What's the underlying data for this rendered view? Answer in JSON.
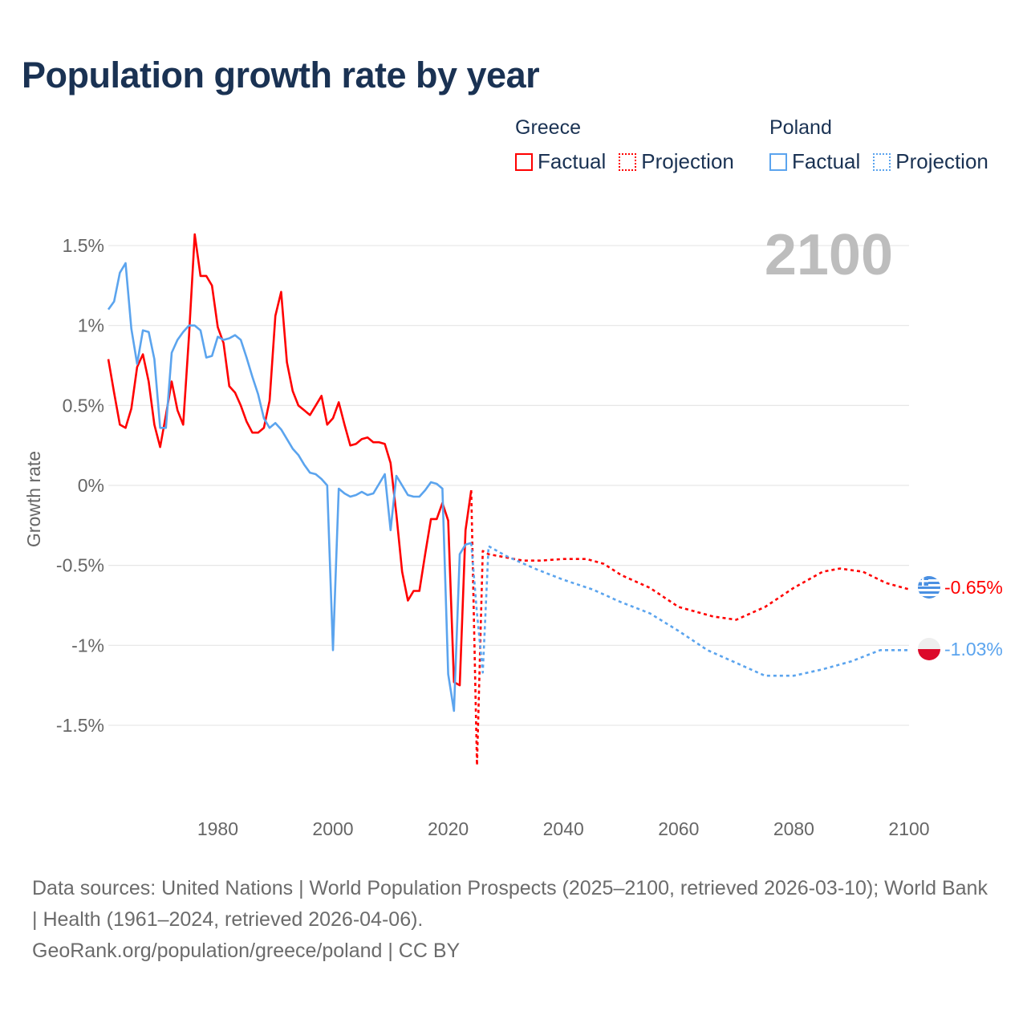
{
  "title": "Population growth rate by year",
  "legend": {
    "groups": [
      {
        "name": "Greece",
        "factual": "Factual",
        "projection": "Projection",
        "color": "#ff0000"
      },
      {
        "name": "Poland",
        "factual": "Factual",
        "projection": "Projection",
        "color": "#5ba4ee"
      }
    ]
  },
  "year_label": "2100",
  "end_labels": {
    "greece": "-0.65%",
    "poland": "-1.03%"
  },
  "footer": {
    "sources": "Data sources: United Nations | World Population Prospects (2025–2100, retrieved 2026-03-10); World Bank | Health (1961–2024, retrieved 2026-04-06).",
    "credit": "GeoRank.org/population/greece/poland | CC BY"
  },
  "chart_data": {
    "type": "line",
    "title": "Population growth rate by year",
    "xlabel": "",
    "ylabel": "Growth rate",
    "xlim": [
      1961,
      2100
    ],
    "ylim": [
      -1.75,
      1.6
    ],
    "grid": true,
    "legend_position": "top-right",
    "x_ticks": [
      {
        "v": 1980,
        "label": "1980"
      },
      {
        "v": 2000,
        "label": "2000"
      },
      {
        "v": 2020,
        "label": "2020"
      },
      {
        "v": 2040,
        "label": "2040"
      },
      {
        "v": 2060,
        "label": "2060"
      },
      {
        "v": 2080,
        "label": "2080"
      },
      {
        "v": 2100,
        "label": "2100"
      }
    ],
    "y_ticks": [
      {
        "v": 1.5,
        "label": "1.5%"
      },
      {
        "v": 1,
        "label": "1%"
      },
      {
        "v": 0.5,
        "label": "0.5%"
      },
      {
        "v": 0,
        "label": "0%"
      },
      {
        "v": -0.5,
        "label": "-0.5%"
      },
      {
        "v": -1,
        "label": "-1%"
      },
      {
        "v": -1.5,
        "label": "-1.5%"
      }
    ],
    "series": [
      {
        "name": "Greece Factual",
        "color": "#ff0000",
        "dashed": false,
        "start": 1961,
        "values": [
          0.79,
          0.58,
          0.38,
          0.36,
          0.48,
          0.74,
          0.82,
          0.65,
          0.38,
          0.24,
          0.44,
          0.65,
          0.47,
          0.38,
          0.93,
          1.57,
          1.31,
          1.31,
          1.25,
          0.99,
          0.89,
          0.62,
          0.58,
          0.5,
          0.4,
          0.33,
          0.33,
          0.36,
          0.53,
          1.06,
          1.21,
          0.77,
          0.59,
          0.5,
          0.47,
          0.44,
          0.5,
          0.56,
          0.38,
          0.42,
          0.52,
          0.38,
          0.25,
          0.26,
          0.29,
          0.3,
          0.27,
          0.27,
          0.26,
          0.14,
          -0.18,
          -0.54,
          -0.72,
          -0.66,
          -0.66,
          -0.43,
          -0.21,
          -0.21,
          -0.11,
          -0.22,
          -1.23,
          -1.25,
          -0.28,
          -0.03
        ]
      },
      {
        "name": "Poland Factual",
        "color": "#5ba4ee",
        "dashed": false,
        "start": 1961,
        "values": [
          1.1,
          1.15,
          1.33,
          1.39,
          0.98,
          0.76,
          0.97,
          0.96,
          0.79,
          0.36,
          0.36,
          0.83,
          0.91,
          0.96,
          1.0,
          1.0,
          0.97,
          0.8,
          0.81,
          0.93,
          0.91,
          0.92,
          0.94,
          0.91,
          0.8,
          0.68,
          0.57,
          0.42,
          0.36,
          0.39,
          0.35,
          0.29,
          0.23,
          0.19,
          0.13,
          0.08,
          0.07,
          0.04,
          0.0,
          -1.03,
          -0.02,
          -0.05,
          -0.07,
          -0.06,
          -0.04,
          -0.06,
          -0.05,
          0.01,
          0.07,
          -0.28,
          0.06,
          0.0,
          -0.06,
          -0.07,
          -0.07,
          -0.03,
          0.02,
          0.01,
          -0.02,
          -1.18,
          -1.41,
          -0.43,
          -0.37,
          -0.36
        ]
      },
      {
        "name": "Greece Projection",
        "color": "#ff0000",
        "dashed": true,
        "points": [
          [
            2024,
            -0.03
          ],
          [
            2025,
            -1.75
          ],
          [
            2026,
            -0.41
          ],
          [
            2027,
            -0.43
          ],
          [
            2030,
            -0.45
          ],
          [
            2033,
            -0.47
          ],
          [
            2036,
            -0.47
          ],
          [
            2040,
            -0.46
          ],
          [
            2044,
            -0.46
          ],
          [
            2047,
            -0.49
          ],
          [
            2050,
            -0.56
          ],
          [
            2055,
            -0.64
          ],
          [
            2060,
            -0.76
          ],
          [
            2063,
            -0.79
          ],
          [
            2066,
            -0.82
          ],
          [
            2070,
            -0.84
          ],
          [
            2075,
            -0.76
          ],
          [
            2080,
            -0.64
          ],
          [
            2085,
            -0.54
          ],
          [
            2088,
            -0.52
          ],
          [
            2092,
            -0.54
          ],
          [
            2096,
            -0.61
          ],
          [
            2100,
            -0.65
          ]
        ]
      },
      {
        "name": "Poland Projection",
        "color": "#5ba4ee",
        "dashed": true,
        "points": [
          [
            2024,
            -0.36
          ],
          [
            2025,
            -0.8
          ],
          [
            2026,
            -1.17
          ],
          [
            2027,
            -0.38
          ],
          [
            2030,
            -0.44
          ],
          [
            2035,
            -0.52
          ],
          [
            2040,
            -0.59
          ],
          [
            2045,
            -0.65
          ],
          [
            2050,
            -0.73
          ],
          [
            2055,
            -0.8
          ],
          [
            2060,
            -0.91
          ],
          [
            2065,
            -1.03
          ],
          [
            2070,
            -1.11
          ],
          [
            2075,
            -1.19
          ],
          [
            2080,
            -1.19
          ],
          [
            2085,
            -1.15
          ],
          [
            2090,
            -1.1
          ],
          [
            2095,
            -1.03
          ],
          [
            2100,
            -1.03
          ]
        ]
      }
    ]
  }
}
